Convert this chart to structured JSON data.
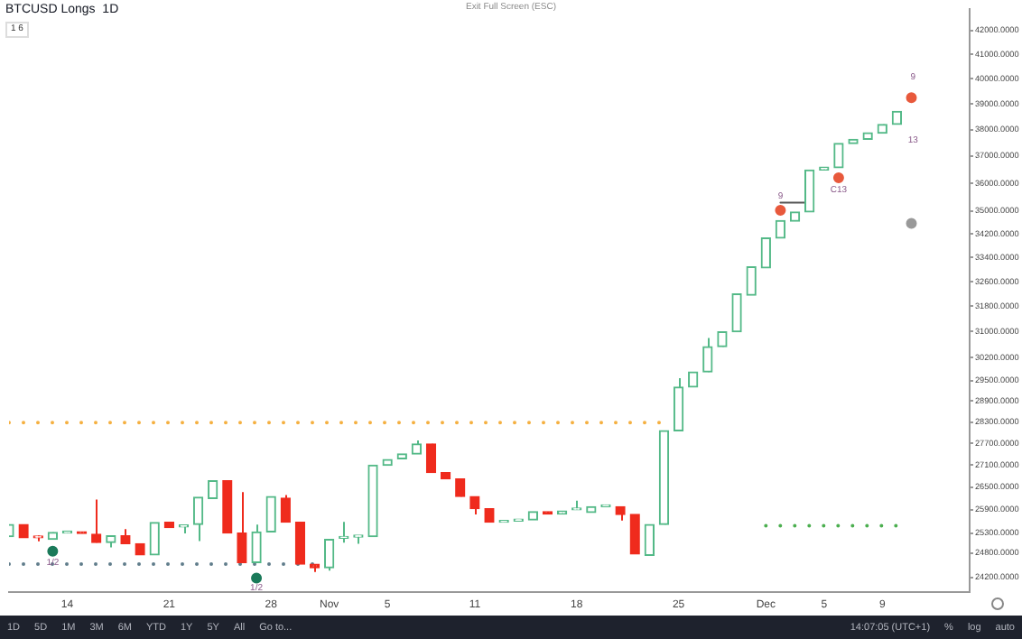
{
  "chart_data": {
    "type": "candlestick",
    "title": "BTCUSD Longs  1D",
    "log": true,
    "ylim": [
      23840,
      42910
    ],
    "yticks": [
      {
        "value": 42000,
        "label": "42000.0000"
      },
      {
        "value": 41000,
        "label": "41000.0000"
      },
      {
        "value": 40000,
        "label": "40000.0000"
      },
      {
        "value": 39000,
        "label": "39000.0000"
      },
      {
        "value": 38000,
        "label": "38000.0000"
      },
      {
        "value": 37000,
        "label": "37000.0000"
      },
      {
        "value": 36000,
        "label": "36000.0000"
      },
      {
        "value": 35000,
        "label": "35000.0000"
      },
      {
        "value": 34200,
        "label": "34200.0000"
      },
      {
        "value": 33400,
        "label": "33400.0000"
      },
      {
        "value": 32600,
        "label": "32600.0000"
      },
      {
        "value": 31800,
        "label": "31800.0000"
      },
      {
        "value": 31000,
        "label": "31000.0000"
      },
      {
        "value": 30200,
        "label": "30200.0000"
      },
      {
        "value": 29500,
        "label": "29500.0000"
      },
      {
        "value": 28900,
        "label": "28900.0000"
      },
      {
        "value": 28300,
        "label": "28300.0000"
      },
      {
        "value": 27700,
        "label": "27700.0000"
      },
      {
        "value": 27100,
        "label": "27100.0000"
      },
      {
        "value": 26500,
        "label": "26500.0000"
      },
      {
        "value": 25900,
        "label": "25900.0000"
      },
      {
        "value": 25300,
        "label": "25300.0000"
      },
      {
        "value": 24800,
        "label": "24800.0000"
      },
      {
        "value": 24200,
        "label": "24200.0000"
      }
    ],
    "xlim": [
      "--10-10",
      "--12-15"
    ],
    "xticks": [
      {
        "value": "--10-14",
        "label": "14"
      },
      {
        "value": "--10-21",
        "label": "21"
      },
      {
        "value": "--10-28",
        "label": "28"
      },
      {
        "value": "--11-01",
        "label": "Nov"
      },
      {
        "value": "--11-05",
        "label": "5"
      },
      {
        "value": "--11-11",
        "label": "11"
      },
      {
        "value": "--11-18",
        "label": "18"
      },
      {
        "value": "--11-25",
        "label": "25"
      },
      {
        "value": "--12-01",
        "label": "Dec"
      },
      {
        "value": "--12-05",
        "label": "5"
      },
      {
        "value": "--12-09",
        "label": "9"
      }
    ],
    "annotations": [
      "Exit Full Screen (ESC)",
      "1 6",
      "1D",
      "5D",
      "1M",
      "3M",
      "6M",
      "YTD",
      "1Y",
      "5Y",
      "All",
      "Go to...",
      "14:07:05 (UTC+1)",
      "%",
      "log",
      "auto",
      "9",
      "13",
      {
        "text": "1/2",
        "x": "--10-13",
        "y": 24560
      },
      {
        "text": "1/2",
        "x": "--10-27",
        "y": 23940
      },
      {
        "text": "9",
        "x": "--12-02",
        "y": 35530
      },
      {
        "text": "C13",
        "x": "--12-06",
        "y": 35760
      }
    ],
    "series": [
      {
        "type": "line",
        "x": [
          "--10-10",
          "--11-24"
        ],
        "values": [
          28280,
          28280
        ],
        "color": "#f5b041",
        "line_style": "dotted"
      },
      {
        "type": "line",
        "x": [
          "--10-10",
          "--10-31"
        ],
        "values": [
          24520,
          24520
        ],
        "color": "#607d8b",
        "line_style": "dotted"
      },
      {
        "type": "line",
        "x": [
          "--12-01",
          "--12-10"
        ],
        "values": [
          25490,
          25490
        ],
        "color": "#4caf50",
        "line_style": "dotted"
      },
      {
        "type": "line",
        "x": [
          "--12-02",
          "--12-04"
        ],
        "values": [
          35300,
          35300
        ],
        "color": "#555555",
        "line_style": "solid"
      },
      {
        "type": "scatter",
        "x": [
          "--10-13",
          "--10-27",
          "--12-02",
          "--12-06",
          "--12-11",
          "--12-11"
        ],
        "values": [
          24840,
          24180,
          35030,
          36200,
          39240,
          34570
        ],
        "colors": [
          "#1b7a5a",
          "#1b7a5a",
          "#e8593c",
          "#e8593c",
          "#e8593c",
          "#999999"
        ],
        "marker": "circle"
      },
      {
        "type": "candlestick",
        "x": [
          "--10-10",
          "--10-11",
          "--10-12",
          "--10-13",
          "--10-14",
          "--10-15",
          "--10-16",
          "--10-17",
          "--10-18",
          "--10-19",
          "--10-20",
          "--10-21",
          "--10-22",
          "--10-23",
          "--10-24",
          "--10-25",
          "--10-26",
          "--10-27",
          "--10-28",
          "--10-29",
          "--10-30",
          "--10-31",
          "--11-01",
          "--11-02",
          "--11-03",
          "--11-04",
          "--11-05",
          "--11-06",
          "--11-07",
          "--11-08",
          "--11-09",
          "--11-10",
          "--11-11",
          "--11-12",
          "--11-13",
          "--11-14",
          "--11-15",
          "--11-16",
          "--11-17",
          "--11-18",
          "--11-19",
          "--11-20",
          "--11-21",
          "--11-22",
          "--11-23",
          "--11-24",
          "--11-25",
          "--11-26",
          "--11-27",
          "--11-28",
          "--11-29",
          "--11-30",
          "--12-01",
          "--12-02",
          "--12-03",
          "--12-04",
          "--12-05",
          "--12-06",
          "--12-07",
          "--12-08",
          "--12-09",
          "--12-10"
        ],
        "ohlc": [
          [
            25210,
            25520,
            25210,
            25520
          ],
          [
            25520,
            25520,
            25180,
            25180
          ],
          [
            25180,
            25240,
            25090,
            25180
          ],
          [
            25140,
            25320,
            25140,
            25320
          ],
          [
            25300,
            25350,
            25300,
            25350
          ],
          [
            25330,
            25330,
            25290,
            25290
          ],
          [
            25270,
            26170,
            25060,
            25060
          ],
          [
            25060,
            25230,
            24940,
            25230
          ],
          [
            25230,
            25400,
            25030,
            25030
          ],
          [
            25030,
            25030,
            24750,
            24750
          ],
          [
            24750,
            25570,
            24750,
            25570
          ],
          [
            25580,
            25580,
            25440,
            25440
          ],
          [
            25460,
            25520,
            25290,
            25500
          ],
          [
            25520,
            26230,
            25100,
            26230
          ],
          [
            26200,
            26670,
            26200,
            26670
          ],
          [
            26670,
            26670,
            25300,
            25300
          ],
          [
            25300,
            26370,
            24560,
            24560
          ],
          [
            24560,
            25520,
            24560,
            25330
          ],
          [
            25330,
            26250,
            25330,
            26250
          ],
          [
            26210,
            26290,
            25580,
            25580
          ],
          [
            25580,
            25580,
            24520,
            24520
          ],
          [
            24520,
            24520,
            24330,
            24430
          ],
          [
            24430,
            25140,
            24360,
            25140
          ],
          [
            25170,
            25590,
            25060,
            25200
          ],
          [
            25200,
            25230,
            25030,
            25230
          ],
          [
            25210,
            27090,
            25210,
            27090
          ],
          [
            27090,
            27250,
            27090,
            27250
          ],
          [
            27270,
            27400,
            27270,
            27400
          ],
          [
            27400,
            27780,
            27400,
            27680
          ],
          [
            27680,
            27680,
            26890,
            26890
          ],
          [
            26890,
            26890,
            26720,
            26720
          ],
          [
            26720,
            26720,
            26250,
            26250
          ],
          [
            26250,
            26250,
            25780,
            25930
          ],
          [
            25930,
            25930,
            25580,
            25580
          ],
          [
            25580,
            25610,
            25580,
            25610
          ],
          [
            25610,
            25640,
            25610,
            25640
          ],
          [
            25640,
            25850,
            25640,
            25850
          ],
          [
            25850,
            25850,
            25790,
            25790
          ],
          [
            25790,
            25870,
            25790,
            25870
          ],
          [
            25900,
            26140,
            25900,
            25930
          ],
          [
            25830,
            25980,
            25830,
            25980
          ],
          [
            25980,
            26030,
            25980,
            26030
          ],
          [
            25980,
            25980,
            25620,
            25780
          ],
          [
            25780,
            25780,
            24770,
            24770
          ],
          [
            24740,
            25520,
            24740,
            25520
          ],
          [
            25520,
            28050,
            25520,
            28050
          ],
          [
            28050,
            29580,
            28050,
            29310
          ],
          [
            29310,
            29760,
            29310,
            29760
          ],
          [
            29760,
            30800,
            29760,
            30530
          ],
          [
            30530,
            30990,
            30530,
            30990
          ],
          [
            30990,
            32200,
            30990,
            32200
          ],
          [
            32160,
            33090,
            32160,
            33090
          ],
          [
            33050,
            34070,
            33050,
            34070
          ],
          [
            34060,
            34670,
            34060,
            34670
          ],
          [
            34650,
            34970,
            34650,
            34970
          ],
          [
            34970,
            36480,
            34970,
            36480
          ],
          [
            36480,
            36590,
            36480,
            36590
          ],
          [
            36570,
            37470,
            36570,
            37470
          ],
          [
            37470,
            37630,
            37470,
            37630
          ],
          [
            37630,
            37880,
            37630,
            37880
          ],
          [
            37860,
            38200,
            37860,
            38200
          ],
          [
            38200,
            38700,
            38200,
            38700
          ]
        ],
        "colors": [
          "#53b987",
          "#ef2b1d",
          "#ef2b1d",
          "#53b987",
          "#53b987",
          "#ef2b1d",
          "#ef2b1d",
          "#53b987",
          "#ef2b1d",
          "#ef2b1d",
          "#53b987",
          "#ef2b1d",
          "#53b987",
          "#53b987",
          "#53b987",
          "#ef2b1d",
          "#ef2b1d",
          "#53b987",
          "#53b987",
          "#ef2b1d",
          "#ef2b1d",
          "#ef2b1d",
          "#53b987",
          "#53b987",
          "#53b987",
          "#53b987",
          "#53b987",
          "#53b987",
          "#53b987",
          "#ef2b1d",
          "#ef2b1d",
          "#ef2b1d",
          "#ef2b1d",
          "#ef2b1d",
          "#53b987",
          "#53b987",
          "#53b987",
          "#ef2b1d",
          "#53b987",
          "#53b987",
          "#53b987",
          "#53b987",
          "#ef2b1d",
          "#ef2b1d",
          "#53b987",
          "#53b987",
          "#53b987",
          "#53b987",
          "#53b987",
          "#53b987",
          "#53b987",
          "#53b987",
          "#53b987",
          "#53b987",
          "#53b987",
          "#53b987",
          "#53b987",
          "#53b987",
          "#53b987",
          "#53b987",
          "#53b987",
          "#53b987"
        ]
      }
    ]
  }
}
